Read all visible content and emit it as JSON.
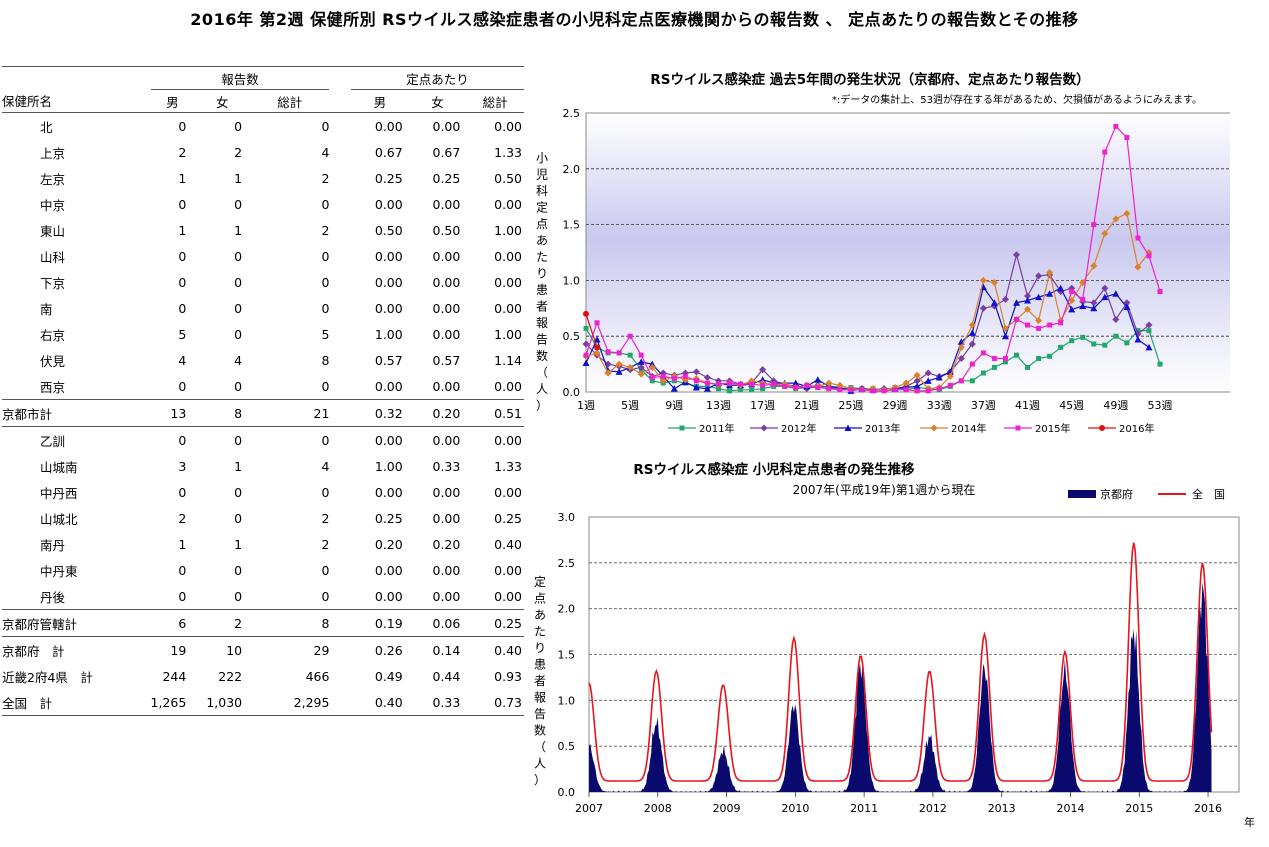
{
  "title": "2016年 第2週 保健所別 RSウイルス感染症患者の小児科定点医療機関からの報告数 、 定点あたりの報告数とその推移",
  "table": {
    "group_headers": [
      "報告数",
      "定点あたり"
    ],
    "row_header": "保健所名",
    "sub_headers": [
      "男",
      "女",
      "総計",
      "男",
      "女",
      "総計"
    ],
    "rows": [
      {
        "name": "北",
        "vals": [
          "0",
          "0",
          "0",
          "0.00",
          "0.00",
          "0.00"
        ],
        "indent": true
      },
      {
        "name": "上京",
        "vals": [
          "2",
          "2",
          "4",
          "0.67",
          "0.67",
          "1.33"
        ],
        "indent": true
      },
      {
        "name": "左京",
        "vals": [
          "1",
          "1",
          "2",
          "0.25",
          "0.25",
          "0.50"
        ],
        "indent": true
      },
      {
        "name": "中京",
        "vals": [
          "0",
          "0",
          "0",
          "0.00",
          "0.00",
          "0.00"
        ],
        "indent": true
      },
      {
        "name": "東山",
        "vals": [
          "1",
          "1",
          "2",
          "0.50",
          "0.50",
          "1.00"
        ],
        "indent": true
      },
      {
        "name": "山科",
        "vals": [
          "0",
          "0",
          "0",
          "0.00",
          "0.00",
          "0.00"
        ],
        "indent": true
      },
      {
        "name": "下京",
        "vals": [
          "0",
          "0",
          "0",
          "0.00",
          "0.00",
          "0.00"
        ],
        "indent": true
      },
      {
        "name": "南",
        "vals": [
          "0",
          "0",
          "0",
          "0.00",
          "0.00",
          "0.00"
        ],
        "indent": true
      },
      {
        "name": "右京",
        "vals": [
          "5",
          "0",
          "5",
          "1.00",
          "0.00",
          "1.00"
        ],
        "indent": true
      },
      {
        "name": "伏見",
        "vals": [
          "4",
          "4",
          "8",
          "0.57",
          "0.57",
          "1.14"
        ],
        "indent": true
      },
      {
        "name": "西京",
        "vals": [
          "0",
          "0",
          "0",
          "0.00",
          "0.00",
          "0.00"
        ],
        "indent": true
      },
      {
        "name": "京都市計",
        "vals": [
          "13",
          "8",
          "21",
          "0.32",
          "0.20",
          "0.51"
        ],
        "indent": false,
        "lineAbove": true,
        "lineBelow": true
      },
      {
        "name": "乙訓",
        "vals": [
          "0",
          "0",
          "0",
          "0.00",
          "0.00",
          "0.00"
        ],
        "indent": true
      },
      {
        "name": "山城南",
        "vals": [
          "3",
          "1",
          "4",
          "1.00",
          "0.33",
          "1.33"
        ],
        "indent": true
      },
      {
        "name": "中丹西",
        "vals": [
          "0",
          "0",
          "0",
          "0.00",
          "0.00",
          "0.00"
        ],
        "indent": true
      },
      {
        "name": "山城北",
        "vals": [
          "2",
          "0",
          "2",
          "0.25",
          "0.00",
          "0.25"
        ],
        "indent": true
      },
      {
        "name": "南丹",
        "vals": [
          "1",
          "1",
          "2",
          "0.20",
          "0.20",
          "0.40"
        ],
        "indent": true
      },
      {
        "name": "中丹東",
        "vals": [
          "0",
          "0",
          "0",
          "0.00",
          "0.00",
          "0.00"
        ],
        "indent": true
      },
      {
        "name": "丹後",
        "vals": [
          "0",
          "0",
          "0",
          "0.00",
          "0.00",
          "0.00"
        ],
        "indent": true
      },
      {
        "name": "京都府管轄計",
        "vals": [
          "6",
          "2",
          "8",
          "0.19",
          "0.06",
          "0.25"
        ],
        "indent": false,
        "lineAbove": true,
        "lineBelow": true
      },
      {
        "name": "京都府　計",
        "vals": [
          "19",
          "10",
          "29",
          "0.26",
          "0.14",
          "0.40"
        ],
        "indent": false
      },
      {
        "name": "近畿2府4県　計",
        "vals": [
          "244",
          "222",
          "466",
          "0.49",
          "0.44",
          "0.93"
        ],
        "indent": false
      },
      {
        "name": "全国　計",
        "vals": [
          "1,265",
          "1,030",
          "2,295",
          "0.40",
          "0.33",
          "0.73"
        ],
        "indent": false,
        "lineBelow": true
      }
    ]
  },
  "chart_data": [
    {
      "type": "line",
      "title": "RSウイルス感染症 過去5年間の発生状況（京都府、定点あたり報告数）",
      "note": "*:データの集計上、53週が存在する年があるため、欠損値があるようにみえます。",
      "ylabel": "小児科定点あたり患者報告数（人）",
      "ylim": [
        0,
        2.5
      ],
      "yticks": [
        "0.0",
        "0.5",
        "1.0",
        "1.5",
        "2.0",
        "2.5"
      ],
      "xticks": [
        "1週",
        "5週",
        "9週",
        "13週",
        "17週",
        "21週",
        "25週",
        "29週",
        "33週",
        "37週",
        "41週",
        "45週",
        "49週",
        "53週"
      ],
      "x": [
        1,
        2,
        3,
        4,
        5,
        6,
        7,
        8,
        9,
        10,
        11,
        12,
        13,
        14,
        15,
        16,
        17,
        18,
        19,
        20,
        21,
        22,
        23,
        24,
        25,
        26,
        27,
        28,
        29,
        30,
        31,
        32,
        33,
        34,
        35,
        36,
        37,
        38,
        39,
        40,
        41,
        42,
        43,
        44,
        45,
        46,
        47,
        48,
        49,
        50,
        51,
        52,
        53
      ],
      "series": [
        {
          "name": "2011年",
          "color": "#1fa86a",
          "marker": "square",
          "values": [
            0.57,
            0.4,
            0.35,
            0.35,
            0.33,
            0.2,
            0.1,
            0.08,
            0.1,
            0.08,
            0.05,
            0.05,
            0.03,
            0.01,
            0.02,
            0.02,
            0.03,
            0.05,
            0.05,
            0.03,
            0.04,
            0.04,
            0.05,
            0.03,
            0.04,
            0.03,
            0.03,
            0.02,
            0.04,
            0.02,
            0.04,
            0.03,
            0.02,
            0.05,
            0.1,
            0.1,
            0.17,
            0.22,
            0.27,
            0.33,
            0.22,
            0.3,
            0.32,
            0.4,
            0.46,
            0.49,
            0.43,
            0.42,
            0.5,
            0.44,
            0.55,
            0.55,
            0.25
          ]
        },
        {
          "name": "2012年",
          "color": "#7a3ea0",
          "marker": "diamond",
          "values": [
            0.43,
            0.33,
            0.25,
            0.23,
            0.2,
            0.22,
            0.14,
            0.17,
            0.15,
            0.17,
            0.18,
            0.13,
            0.1,
            0.1,
            0.07,
            0.08,
            0.2,
            0.1,
            0.07,
            0.05,
            0.03,
            0.06,
            0.04,
            0.03,
            0.03,
            0.03,
            0.02,
            0.03,
            0.03,
            0.05,
            0.1,
            0.17,
            0.14,
            0.18,
            0.3,
            0.43,
            0.75,
            0.77,
            0.83,
            1.23,
            0.86,
            1.04,
            1.05,
            0.9,
            0.93,
            0.81,
            0.8,
            0.93,
            0.65,
            0.8,
            0.52,
            0.6,
            null
          ]
        },
        {
          "name": "2013年",
          "color": "#1010cc",
          "marker": "triangle",
          "values": [
            0.26,
            0.47,
            0.19,
            0.18,
            0.22,
            0.27,
            0.25,
            0.14,
            0.03,
            0.09,
            0.04,
            0.03,
            0.08,
            0.06,
            0.06,
            0.07,
            0.11,
            0.08,
            0.08,
            0.08,
            0.05,
            0.11,
            0.05,
            0.04,
            0.01,
            0.03,
            0.02,
            0.03,
            0.03,
            0.04,
            0.05,
            0.1,
            0.13,
            0.18,
            0.45,
            0.53,
            0.94,
            0.8,
            0.5,
            0.8,
            0.82,
            0.85,
            0.88,
            0.93,
            0.74,
            0.77,
            0.75,
            0.85,
            0.88,
            0.76,
            0.47,
            0.4,
            null
          ]
        },
        {
          "name": "2014年",
          "color": "#d9822b",
          "marker": "diamond",
          "values": [
            0.32,
            0.35,
            0.17,
            0.25,
            0.22,
            0.16,
            0.22,
            0.1,
            0.14,
            0.11,
            0.12,
            0.08,
            0.07,
            0.08,
            0.06,
            0.1,
            0.08,
            0.07,
            0.07,
            0.04,
            0.06,
            0.05,
            0.08,
            0.06,
            0.03,
            0.02,
            0.03,
            0.02,
            0.04,
            0.08,
            0.15,
            0.03,
            0.04,
            0.14,
            0.4,
            0.6,
            1.0,
            0.98,
            0.57,
            0.65,
            0.74,
            0.64,
            1.07,
            0.64,
            0.82,
            0.98,
            1.13,
            1.42,
            1.55,
            1.6,
            1.12,
            1.25,
            null
          ]
        },
        {
          "name": "2015年",
          "color": "#ee22cc",
          "marker": "square",
          "values": [
            0.33,
            0.62,
            0.36,
            0.35,
            0.5,
            0.33,
            0.13,
            0.14,
            0.12,
            0.14,
            0.1,
            0.08,
            0.07,
            0.08,
            0.07,
            0.07,
            0.06,
            0.07,
            0.05,
            0.04,
            0.06,
            0.04,
            0.03,
            0.02,
            0.02,
            0.02,
            0.01,
            0.01,
            0.02,
            0.02,
            0.01,
            0.01,
            0.03,
            0.06,
            0.1,
            0.25,
            0.35,
            0.3,
            0.3,
            0.65,
            0.6,
            0.57,
            0.6,
            0.62,
            0.9,
            0.83,
            1.5,
            2.15,
            2.38,
            2.28,
            1.38,
            1.22,
            0.9
          ]
        },
        {
          "name": "2016年",
          "color": "#dd1111",
          "marker": "circle",
          "values": [
            0.7,
            0.4,
            null,
            null,
            null,
            null,
            null,
            null,
            null,
            null,
            null,
            null,
            null,
            null,
            null,
            null,
            null,
            null,
            null,
            null,
            null,
            null,
            null,
            null,
            null,
            null,
            null,
            null,
            null,
            null,
            null,
            null,
            null,
            null,
            null,
            null,
            null,
            null,
            null,
            null,
            null,
            null,
            null,
            null,
            null,
            null,
            null,
            null,
            null,
            null,
            null,
            null,
            null
          ]
        }
      ]
    },
    {
      "type": "area",
      "title": "RSウイルス感染症 小児科定点患者の発生推移",
      "subtitle": "2007年(平成19年)第1週から現在",
      "ylabel": "定点あたり患者報告数（人）",
      "ylim": [
        0,
        3.0
      ],
      "yticks": [
        "0.0",
        "0.5",
        "1.0",
        "1.5",
        "2.0",
        "2.5",
        "3.0"
      ],
      "xticks": [
        "2007",
        "2008",
        "2009",
        "2010",
        "2011",
        "2012",
        "2013",
        "2014",
        "2015",
        "2016"
      ],
      "xunit": "年",
      "season_peaks": [
        {
          "year": 2007.0,
          "kyoto": 0.5,
          "national": 1.07
        },
        {
          "year": 2007.98,
          "kyoto": 0.75,
          "national": 1.2
        },
        {
          "year": 2008.95,
          "kyoto": 0.45,
          "national": 1.05
        },
        {
          "year": 2009.98,
          "kyoto": 0.95,
          "national": 1.56
        },
        {
          "year": 2010.95,
          "kyoto": 1.38,
          "national": 1.37
        },
        {
          "year": 2011.95,
          "kyoto": 0.6,
          "national": 1.2
        },
        {
          "year": 2012.75,
          "kyoto": 1.35,
          "national": 1.6
        },
        {
          "year": 2013.92,
          "kyoto": 1.32,
          "national": 1.41
        },
        {
          "year": 2014.92,
          "kyoto": 1.75,
          "national": 2.6
        },
        {
          "year": 2015.92,
          "kyoto": 2.2,
          "national": 2.38
        }
      ],
      "series": [
        {
          "name": "京都府",
          "color": "#0a0a6e",
          "style": "area"
        },
        {
          "name": "全　国",
          "color": "#e8141e",
          "style": "line"
        }
      ]
    }
  ]
}
